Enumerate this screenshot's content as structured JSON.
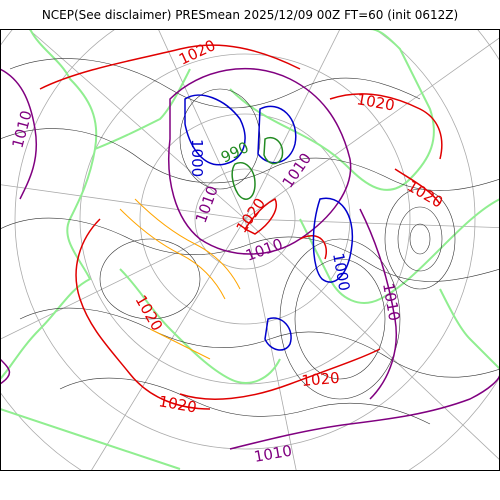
{
  "title": "NCEP(See disclaimer) PRESmean 2025/12/09 00Z FT=60 (init 0612Z)",
  "colors": {
    "contour_1010": "#800080",
    "contour_1020": "#e00000",
    "contour_1000": "#0000cc",
    "contour_990": "#228b22",
    "contour_minor": "#333333",
    "contour_orange": "#ffa500",
    "coastline": "#90ee90",
    "graticule": "#aaaaaa",
    "frame": "#000000"
  },
  "labels": {
    "l1020_top": "1020",
    "l1000_nw": "1000",
    "l1010_w": "1010",
    "l990": "990",
    "l1020_ne": "1020",
    "l1010_c1": "1010",
    "l1020_c": "1020",
    "l1010_c2": "1010",
    "l1010_c3": "1010",
    "l1000_e": "1000",
    "l1010_e": "1010",
    "l1020_e": "1020",
    "l1020_sw": "1020",
    "l1020_s": "1020",
    "l1020_s2": "1020",
    "l1010_s": "1010"
  }
}
